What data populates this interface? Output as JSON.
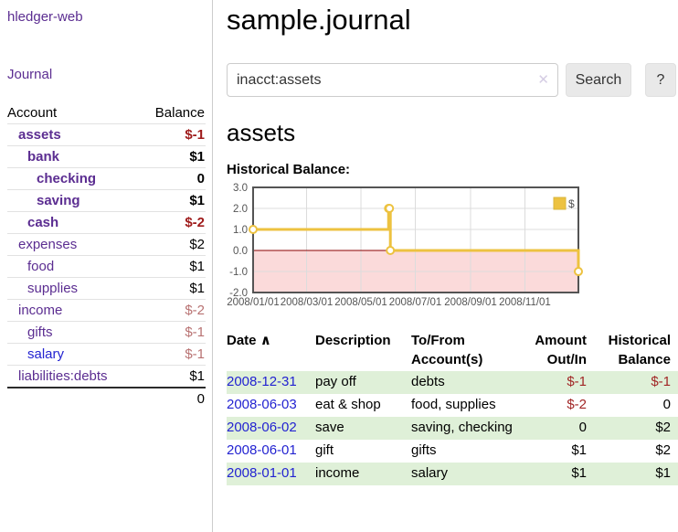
{
  "app": {
    "title": "hledger-web"
  },
  "sidebar": {
    "journal_label": "Journal",
    "accounts": {
      "header_account": "Account",
      "header_balance": "Balance",
      "rows": [
        {
          "name": "assets",
          "balance": "$-1"
        },
        {
          "name": "bank",
          "balance": "$1"
        },
        {
          "name": "checking",
          "balance": "0"
        },
        {
          "name": "saving",
          "balance": "$1"
        },
        {
          "name": "cash",
          "balance": "$-2"
        },
        {
          "name": "expenses",
          "balance": "$2"
        },
        {
          "name": "food",
          "balance": "$1"
        },
        {
          "name": "supplies",
          "balance": "$1"
        },
        {
          "name": "income",
          "balance": "$-2"
        },
        {
          "name": "gifts",
          "balance": "$-1"
        },
        {
          "name": "salary",
          "balance": "$-1"
        },
        {
          "name": "liabilities:debts",
          "balance": "$1"
        }
      ],
      "total": "0"
    }
  },
  "main": {
    "title": "sample.journal",
    "search": {
      "value": "inacct:assets",
      "clear_icon": "✕",
      "button_label": "Search",
      "help_label": "?"
    },
    "account_heading": "assets",
    "chart_label": "Historical Balance:"
  },
  "chart_data": {
    "type": "line",
    "step": true,
    "title": "Historical Balance:",
    "series": [
      {
        "name": "$",
        "color": "#edc240",
        "points": [
          [
            "2008-01-01",
            1
          ],
          [
            "2008-06-01",
            2
          ],
          [
            "2008-06-02",
            2
          ],
          [
            "2008-06-03",
            0
          ],
          [
            "2008-12-31",
            -1
          ]
        ]
      }
    ],
    "x_range": [
      "2008-01-01",
      "2008-12-31"
    ],
    "y_range": [
      -2,
      3
    ],
    "y_ticks": [
      {
        "v": 3,
        "label": "3.0"
      },
      {
        "v": 2,
        "label": "2.0"
      },
      {
        "v": 1,
        "label": "1.0"
      },
      {
        "v": 0,
        "label": "0.0"
      },
      {
        "v": -1,
        "label": "-1.0"
      },
      {
        "v": -2,
        "label": "-2.0"
      }
    ],
    "x_ticks": [
      {
        "date": "2008-01-01",
        "label": "2008/01/01"
      },
      {
        "date": "2008-03-01",
        "label": "2008/03/01"
      },
      {
        "date": "2008-05-01",
        "label": "2008/05/01"
      },
      {
        "date": "2008-07-01",
        "label": "2008/07/01"
      },
      {
        "date": "2008-09-01",
        "label": "2008/09/01"
      },
      {
        "date": "2008-11-01",
        "label": "2008/11/01"
      }
    ],
    "legend": {
      "label": "$",
      "position": "top-right"
    },
    "grid": true,
    "negative_region_color": "#fbdada",
    "zero_line_color": "#8b0000"
  },
  "register_table": {
    "sort_icon": "∧",
    "headers": {
      "date": "Date",
      "description": "Description",
      "accounts": "To/From Account(s)",
      "amount": "Amount Out/In",
      "balance": "Historical Balance"
    },
    "rows": [
      {
        "date": "2008-12-31",
        "description": "pay off",
        "accounts": "debts",
        "amount": "$-1",
        "balance": "$-1"
      },
      {
        "date": "2008-06-03",
        "description": "eat & shop",
        "accounts": "food, supplies",
        "amount": "$-2",
        "balance": "0"
      },
      {
        "date": "2008-06-02",
        "description": "save",
        "accounts": "saving, checking",
        "amount": "0",
        "balance": "$2"
      },
      {
        "date": "2008-06-01",
        "description": "gift",
        "accounts": "gifts",
        "amount": "$1",
        "balance": "$2"
      },
      {
        "date": "2008-01-01",
        "description": "income",
        "accounts": "salary",
        "amount": "$1",
        "balance": "$1"
      }
    ]
  },
  "colors": {
    "link_purple": "#5b2d91",
    "link_blue": "#2323d1",
    "negative_red_bold": "#9e1a1a",
    "negative_red_muted": "#b87272",
    "table_red": "#a12626",
    "row_stripe_green": "#dff0d8",
    "chart_line_gold": "#edc240",
    "chart_negative_pink": "#fbdada",
    "chart_zero_line": "#8b0000"
  }
}
